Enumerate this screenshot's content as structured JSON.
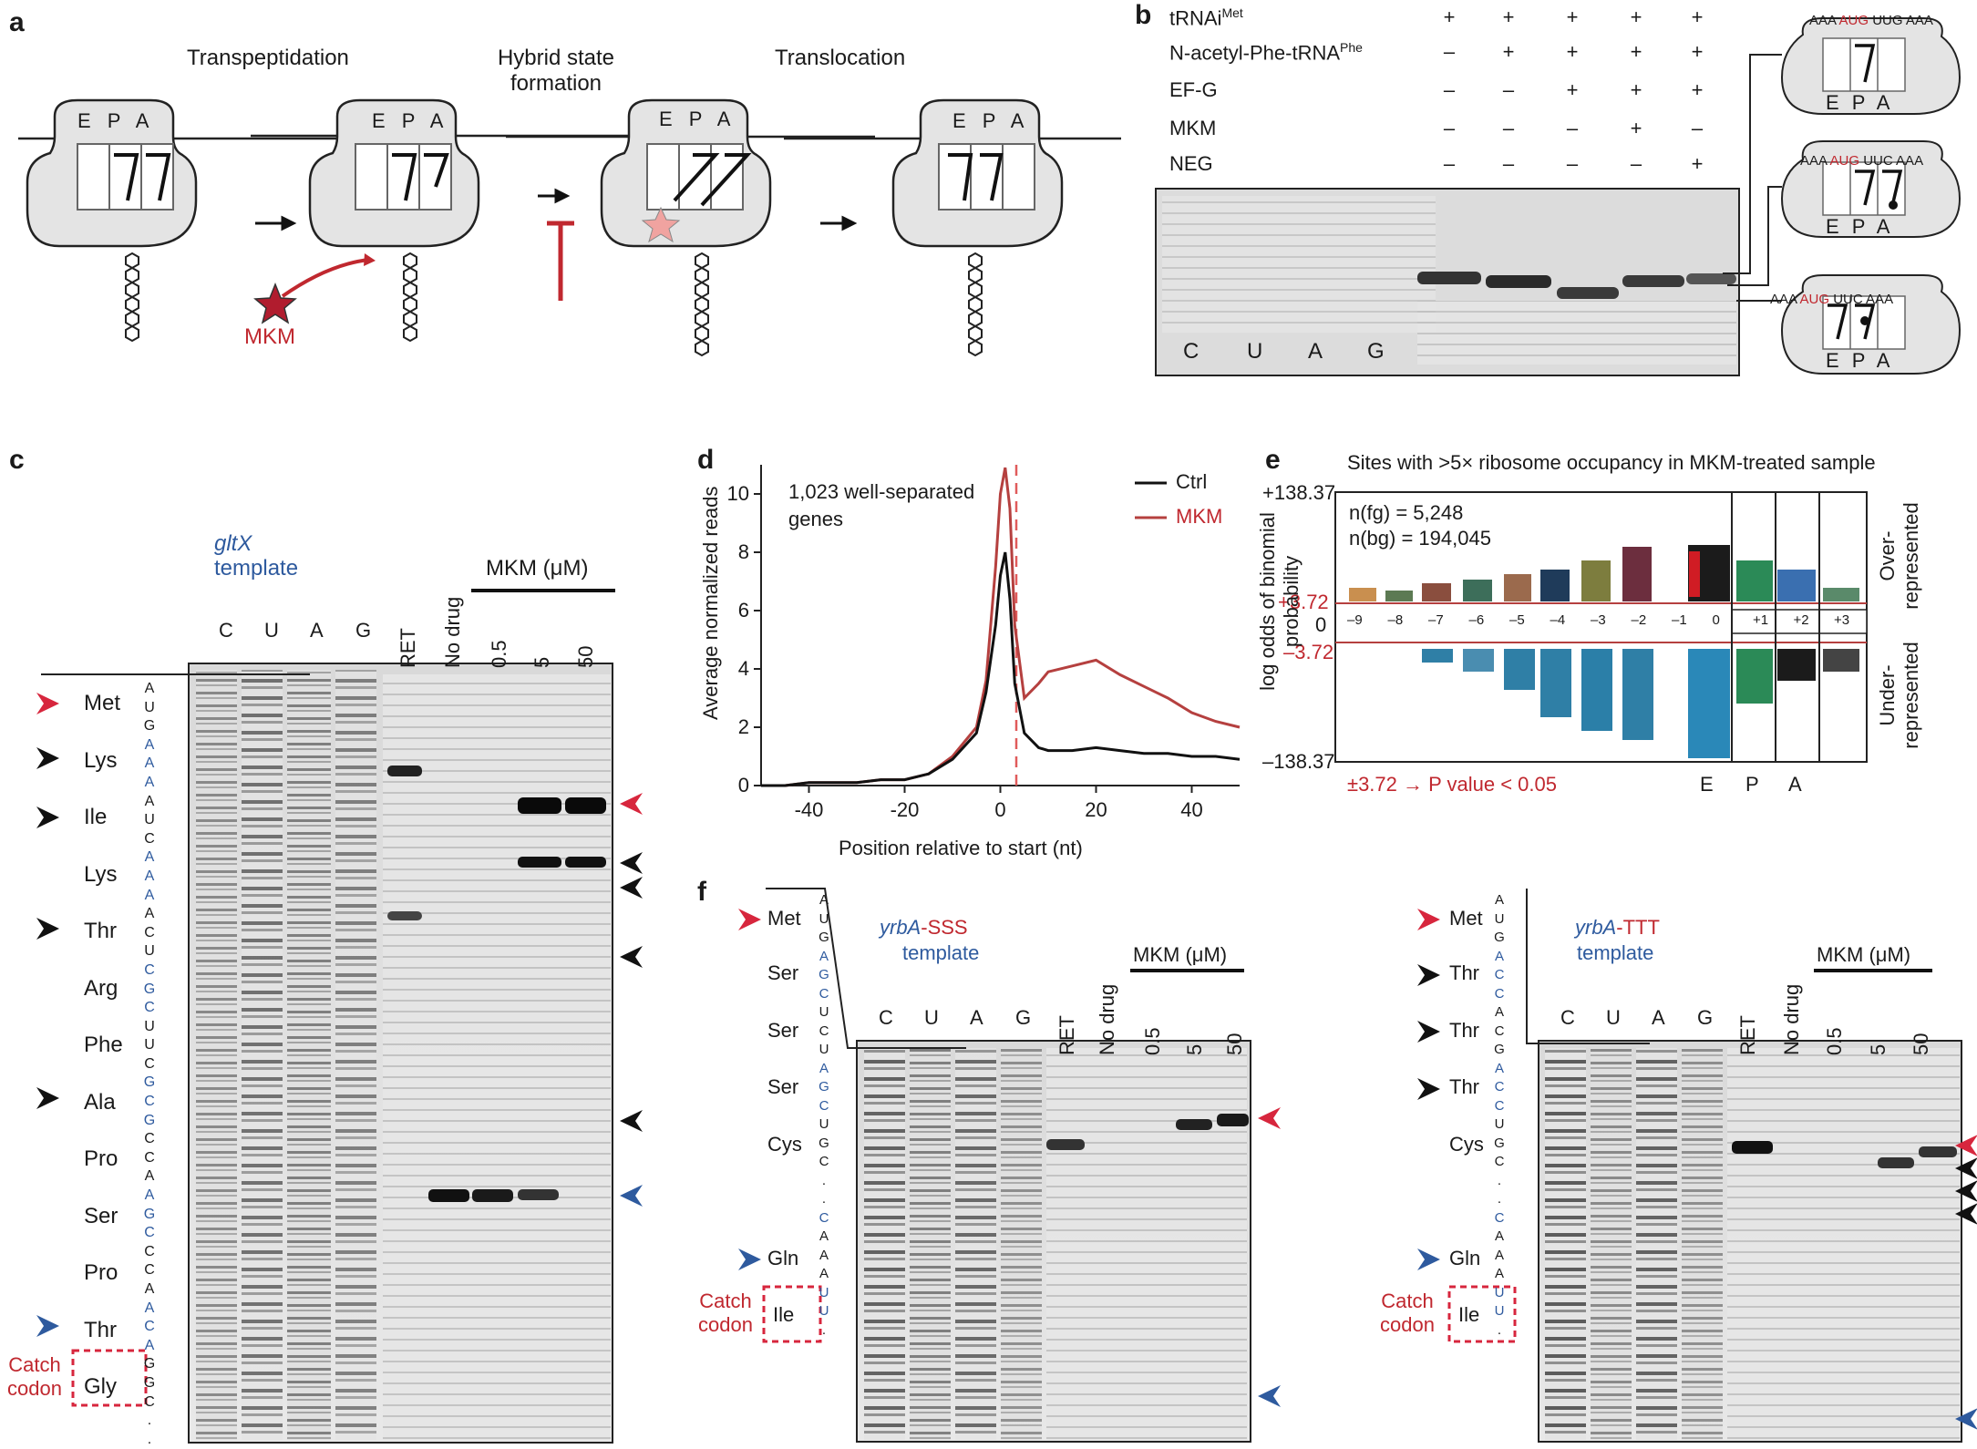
{
  "panel_a": {
    "label": "a",
    "steps": [
      "Transpeptidation",
      "Hybrid state formation"
    ],
    "step3": "Translocation",
    "site_labels": [
      "E",
      "P",
      "A"
    ],
    "drug": "MKM"
  },
  "panel_b": {
    "label": "b",
    "rows": [
      {
        "name": "tRNAi",
        "sup": "Met",
        "values": [
          "+",
          "+",
          "+",
          "+",
          "+"
        ]
      },
      {
        "name": "N-acetyl-Phe-tRNA",
        "sup": "Phe",
        "values": [
          "–",
          "+",
          "+",
          "+",
          "+"
        ]
      },
      {
        "name": "EF-G",
        "sup": "",
        "values": [
          "–",
          "–",
          "+",
          "+",
          "+"
        ]
      },
      {
        "name": "MKM",
        "sup": "",
        "values": [
          "–",
          "–",
          "–",
          "+",
          "–"
        ]
      },
      {
        "name": "NEG",
        "sup": "",
        "values": [
          "–",
          "–",
          "–",
          "–",
          "+"
        ]
      }
    ],
    "lanes": [
      "C",
      "U",
      "A",
      "G"
    ],
    "ribo_codons": [
      {
        "left": "AAA",
        "mid": "AUG",
        "right": "UUG AAA"
      },
      {
        "left": "AAA",
        "mid": "AUG",
        "right": "UUC AAA"
      },
      {
        "left": "AAA",
        "mid": "AUG",
        "right": "UUC AAA"
      }
    ]
  },
  "panel_c": {
    "label": "c",
    "template_gene": "gltX",
    "template_word": "template",
    "lanes": [
      "C",
      "U",
      "A",
      "G",
      "RET",
      "No drug",
      "0.5",
      "5",
      "50"
    ],
    "mkm_header": "MKM (μM)",
    "amino_acids": [
      "Met",
      "Lys",
      "Ile",
      "Lys",
      "Thr",
      "Arg",
      "Phe",
      "Ala",
      "Pro",
      "Ser",
      "Pro",
      "Thr",
      "Gly"
    ],
    "sequence": [
      "A",
      "U",
      "G",
      "A",
      "A",
      "A",
      "A",
      "U",
      "C",
      "A",
      "A",
      "A",
      "A",
      "C",
      "U",
      "C",
      "G",
      "C",
      "U",
      "U",
      "C",
      "G",
      "C",
      "G",
      "C",
      "C",
      "A",
      "A",
      "G",
      "C",
      "C",
      "C",
      "A",
      "A",
      "C",
      "A",
      "G",
      "G",
      "C",
      ".",
      "."
    ],
    "catch_codon": "Catch codon"
  },
  "panel_d": {
    "label": "d",
    "annotation": "1,023 well-separated genes",
    "ylabel": "Average normalized reads",
    "xlabel": "Position relative to start (nt)",
    "legend": [
      "Ctrl",
      "MKM"
    ]
  },
  "chart_data": {
    "type": "line",
    "xlabel": "Position relative to start (nt)",
    "ylabel": "Average normalized reads",
    "xlim": [
      -50,
      50
    ],
    "ylim": [
      0,
      11
    ],
    "xticks": [
      -40,
      -20,
      0,
      20,
      40
    ],
    "yticks": [
      0,
      2,
      4,
      6,
      8,
      10
    ],
    "x": [
      -50,
      -45,
      -40,
      -35,
      -30,
      -25,
      -20,
      -15,
      -10,
      -5,
      -3,
      -1,
      0,
      1,
      2,
      3,
      5,
      8,
      10,
      15,
      20,
      25,
      30,
      35,
      40,
      45,
      50
    ],
    "series": [
      {
        "name": "Ctrl",
        "color": "#111111",
        "values": [
          0,
          0,
          0.1,
          0.1,
          0.1,
          0.2,
          0.2,
          0.4,
          0.9,
          1.8,
          3.2,
          5.5,
          7.2,
          8.0,
          6.4,
          3.5,
          1.8,
          1.3,
          1.2,
          1.2,
          1.3,
          1.2,
          1.1,
          1.1,
          1.0,
          1.0,
          0.9
        ]
      },
      {
        "name": "MKM",
        "color": "#b5403f",
        "values": [
          0,
          0,
          0.1,
          0.1,
          0.1,
          0.2,
          0.2,
          0.4,
          1.0,
          2.0,
          3.6,
          7.5,
          10.0,
          10.9,
          9.5,
          5.5,
          3.0,
          3.5,
          3.9,
          4.1,
          4.3,
          3.8,
          3.4,
          3.0,
          2.5,
          2.2,
          2.0
        ]
      }
    ]
  },
  "panel_e": {
    "label": "e",
    "title": "Sites with >5× ribosome occupancy in MKM-treated sample",
    "ylabel": "log odds of binomial probability",
    "ytop": "+138.37",
    "ybottom": "–138.37",
    "ypos": "+3.72",
    "yneg": "–3.72",
    "yzero": "0",
    "nfg": "n(fg) = 5,248",
    "nbg": "n(bg) = 194,045",
    "positions": [
      "–9",
      "–8",
      "–7",
      "–6",
      "–5",
      "–4",
      "–3",
      "–2",
      "–1",
      "0",
      "+1",
      "+2",
      "+3"
    ],
    "over": "Over-represented",
    "under": "Under-represented",
    "pvalue": "±3.72 → P value < 0.05",
    "sites": [
      "E",
      "P",
      "A"
    ]
  },
  "panel_f": {
    "label": "f",
    "left": {
      "gene": "yrbA",
      "suffix": "-SSS",
      "template_word": "template",
      "amino_acids": [
        "Met",
        "Ser",
        "Ser",
        "Ser",
        "Cys",
        "Gln",
        "Ile"
      ],
      "sequence": [
        "A",
        "U",
        "G",
        "A",
        "G",
        "C",
        "U",
        "C",
        "U",
        "A",
        "G",
        "C",
        "U",
        "G",
        "C",
        ".",
        ".",
        "C",
        "A",
        "A",
        "A",
        "U",
        "U",
        "."
      ]
    },
    "right": {
      "gene": "yrbA",
      "suffix": "-TTT",
      "template_word": "template",
      "amino_acids": [
        "Met",
        "Thr",
        "Thr",
        "Thr",
        "Cys",
        "Gln",
        "Ile"
      ],
      "sequence": [
        "A",
        "U",
        "G",
        "A",
        "C",
        "C",
        "A",
        "C",
        "G",
        "A",
        "C",
        "C",
        "U",
        "G",
        "C",
        ".",
        ".",
        "C",
        "A",
        "A",
        "A",
        "U",
        "U",
        "."
      ]
    },
    "lanes": [
      "C",
      "U",
      "A",
      "G",
      "RET",
      "No drug",
      "0.5",
      "5",
      "50"
    ],
    "mkm_header": "MKM (μM)",
    "catch_codon": "Catch codon"
  }
}
